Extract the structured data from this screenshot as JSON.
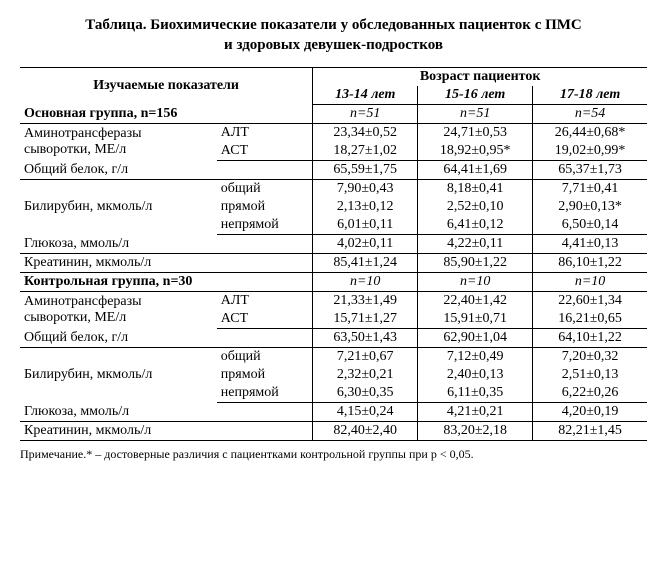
{
  "title_line1": "Таблица. Биохимические показатели у обследованных пациенток с ПМС",
  "title_line2": "и здоровых девушек-подростков",
  "headers": {
    "param": "Изучаемые показатели",
    "age": "Возраст пациенток",
    "a1": "13-14 лет",
    "a2": "15-16 лет",
    "a3": "17-18 лет"
  },
  "group_main": {
    "label": "Основная группа, n=156",
    "n1": "n=51",
    "n2": "n=51",
    "n3": "n=54"
  },
  "group_ctrl": {
    "label": "Контрольная группа, n=30",
    "n1": "n=10",
    "n2": "n=10",
    "n3": "n=10"
  },
  "labels": {
    "amino": "Аминотрансферазы",
    "amino2": "сыворотки, МЕ/л",
    "alt": "АЛТ",
    "ast": "АСТ",
    "protein": "Общий белок, г/л",
    "bili": "Билирубин, мкмоль/л",
    "b_tot": "общий",
    "b_dir": "прямой",
    "b_ind": "непрямой",
    "gluc": "Глюкоза, ммоль/л",
    "creat": "Креатинин, мкмоль/л"
  },
  "main": {
    "alt": {
      "a1": "23,34±0,52",
      "a2": "24,71±0,53",
      "a3": "26,44±0,68*"
    },
    "ast": {
      "a1": "18,27±1,02",
      "a2": "18,92±0,95*",
      "a3": "19,02±0,99*"
    },
    "prot": {
      "a1": "65,59±1,75",
      "a2": "64,41±1,69",
      "a3": "65,37±1,73"
    },
    "b_tot": {
      "a1": "7,90±0,43",
      "a2": "8,18±0,41",
      "a3": "7,71±0,41"
    },
    "b_dir": {
      "a1": "2,13±0,12",
      "a2": "2,52±0,10",
      "a3": "2,90±0,13*"
    },
    "b_ind": {
      "a1": "6,01±0,11",
      "a2": "6,41±0,12",
      "a3": "6,50±0,14"
    },
    "gluc": {
      "a1": "4,02±0,11",
      "a2": "4,22±0,11",
      "a3": "4,41±0,13"
    },
    "creat": {
      "a1": "85,41±1,24",
      "a2": "85,90±1,22",
      "a3": "86,10±1,22"
    }
  },
  "ctrl": {
    "alt": {
      "a1": "21,33±1,49",
      "a2": "22,40±1,42",
      "a3": "22,60±1,34"
    },
    "ast": {
      "a1": "15,71±1,27",
      "a2": "15,91±0,71",
      "a3": "16,21±0,65"
    },
    "prot": {
      "a1": "63,50±1,43",
      "a2": "62,90±1,04",
      "a3": "64,10±1,22"
    },
    "b_tot": {
      "a1": "7,21±0,67",
      "a2": "7,12±0,49",
      "a3": "7,20±0,32"
    },
    "b_dir": {
      "a1": "2,32±0,21",
      "a2": "2,40±0,13",
      "a3": "2,51±0,13"
    },
    "b_ind": {
      "a1": "6,30±0,35",
      "a2": "6,11±0,35",
      "a3": "6,22±0,26"
    },
    "gluc": {
      "a1": "4,15±0,24",
      "a2": "4,21±0,21",
      "a3": "4,20±0,19"
    },
    "creat": {
      "a1": "82,40±2,40",
      "a2": "83,20±2,18",
      "a3": "82,21±1,45"
    }
  },
  "footnote": "Примечание.* – достоверные различия с пациентками контрольной группы при p < 0,05."
}
